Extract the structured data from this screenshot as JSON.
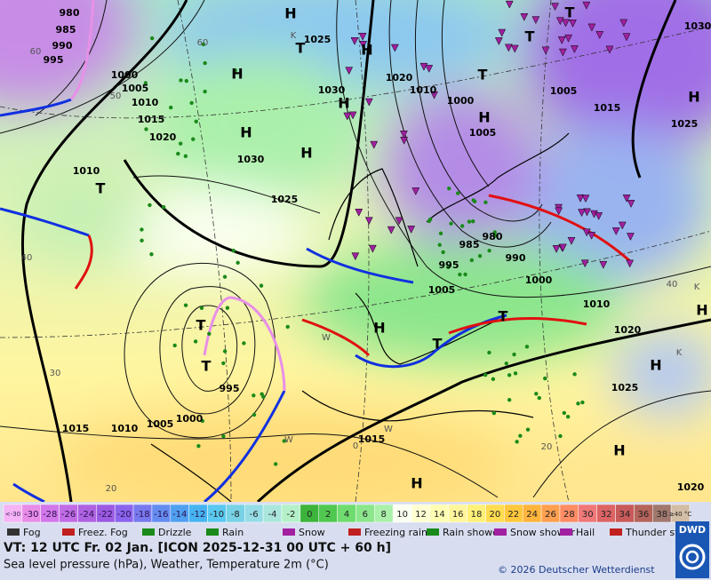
{
  "map": {
    "labels": [
      "980",
      "985",
      "990",
      "995",
      "1000",
      "1005",
      "1010",
      "1015",
      "1020",
      "1010",
      "1030",
      "1025",
      "1025",
      "1030",
      "1020",
      "1010",
      "1000",
      "1005",
      "1005",
      "1015",
      "1025",
      "1030",
      "985",
      "980",
      "990",
      "995",
      "1000",
      "1005",
      "1010",
      "1020",
      "1025",
      "1020",
      "995",
      "1000",
      "1005",
      "1010",
      "1015",
      "1015",
      "H",
      "H",
      "H",
      "H",
      "H",
      "H",
      "H",
      "H",
      "H",
      "H",
      "H",
      "H",
      "H",
      "T",
      "T",
      "T",
      "T",
      "T",
      "T",
      "T",
      "T",
      "T",
      "40",
      "30",
      "20",
      "50",
      "60",
      "60",
      "0",
      "20",
      "40",
      "K",
      "K",
      "K",
      "W",
      "W",
      "W"
    ]
  },
  "temperature_scale": {
    "labels": [
      "<-30",
      "-30",
      "-28",
      "-26",
      "-24",
      "-22",
      "-20",
      "-18",
      "-16",
      "-14",
      "-12",
      "-10",
      "-8",
      "-6",
      "-4",
      "-2",
      "0",
      "2",
      "4",
      "6",
      "8",
      "10",
      "12",
      "14",
      "16",
      "18",
      "20",
      "22",
      "24",
      "26",
      "28",
      "30",
      "32",
      "34",
      "36",
      "38",
      "≥40 °C"
    ],
    "colors": [
      "#f5b4f5",
      "#e88ce8",
      "#d278ea",
      "#c06ce4",
      "#ae62e2",
      "#9c5ae2",
      "#8a64ec",
      "#7878ee",
      "#648cf0",
      "#50a0f0",
      "#46b4f0",
      "#5ac8f0",
      "#78d2e6",
      "#96dce6",
      "#aae6dc",
      "#b4f0c8",
      "#3cb43c",
      "#50c850",
      "#6edc6e",
      "#8ce68c",
      "#aaf0aa",
      "#fafff0",
      "#ffffd2",
      "#ffffb4",
      "#fff59b",
      "#fff078",
      "#ffdc50",
      "#ffc83c",
      "#ffb43c",
      "#ffa050",
      "#ff8c64",
      "#f07878",
      "#dc6464",
      "#c85a5a",
      "#b4645a",
      "#a0786e",
      "#d2bea5"
    ]
  },
  "weather_legend": [
    "Fog",
    "Freez. Fog",
    "Drizzle",
    "Rain",
    "Snow",
    "Freezing rain",
    "Rain shower",
    "Snow shower",
    "Hail",
    "Thunder storm"
  ],
  "footer": {
    "valid_time": "VT: 12 UTC Fr.  02 Jan. [ICON 2025-12-31  00 UTC + 60 h]",
    "description": "Sea level pressure (hPa), Weather, Temperature 2m (°C)",
    "copyright": "© 2026 Deutscher Wetterdienst",
    "logo": "DWD"
  }
}
